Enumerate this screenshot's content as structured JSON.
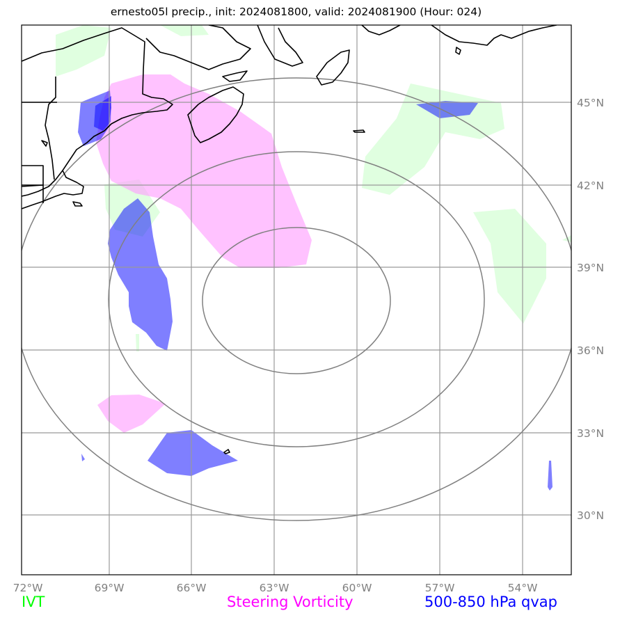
{
  "title": "ernesto05l precip., init: 2024081800, valid: 2024081900 (Hour: 024)",
  "axes": {
    "lon_labels": [
      "72°W",
      "69°W",
      "66°W",
      "63°W",
      "60°W",
      "57°W",
      "54°W"
    ],
    "lat_labels": [
      "45°N",
      "42°N",
      "39°N",
      "36°N",
      "33°N",
      "30°N"
    ]
  },
  "legend": {
    "ivt": "IVT",
    "steering_vorticity": "Steering Vorticity",
    "qvap": "500-850 hPa qvap"
  },
  "colors": {
    "ivt": "#00ff00",
    "steering_vorticity": "#ff00ff",
    "qvap": "#0000ff",
    "grid": "#999999",
    "coast": "#000000",
    "range_rings": "#808080"
  },
  "map_features": [
    "coastlines",
    "lat-lon gridlines",
    "range rings centered on storm",
    "IVT shading",
    "steering vorticity shading",
    "qvap shading"
  ]
}
